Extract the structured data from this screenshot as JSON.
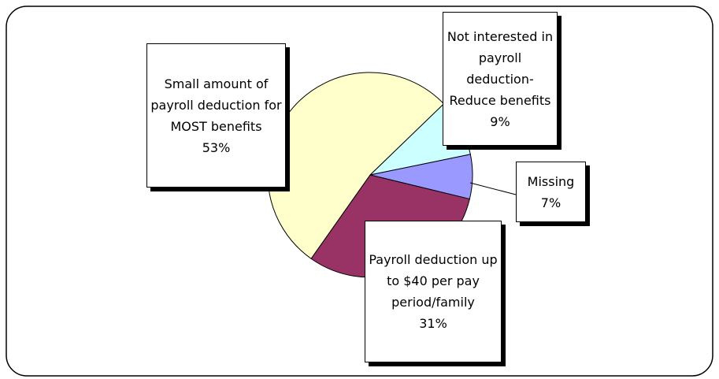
{
  "chart_data": {
    "type": "pie",
    "categories": [
      "Not interested in payroll deduction-Reduce benefits",
      "Missing",
      "Payroll deduction up to $40 per pay period/family",
      "Small amount of payroll deduction for MOST benefits"
    ],
    "values": [
      9,
      7,
      31,
      53
    ],
    "value_labels": [
      "9%",
      "7%",
      "31%",
      "53%"
    ],
    "colors": [
      "#ccffff",
      "#9999ff",
      "#993366",
      "#ffffcc"
    ]
  }
}
